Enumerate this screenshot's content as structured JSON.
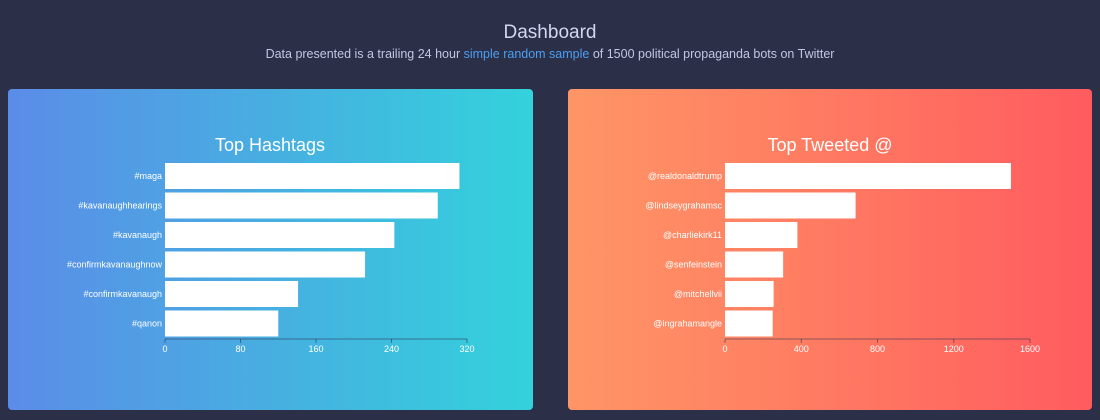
{
  "header": {
    "title": "Dashboard",
    "subtitle_before": "Data presented is a trailing 24 hour ",
    "subtitle_link": "simple random sample",
    "subtitle_after": " of 1500 political propaganda bots on Twitter"
  },
  "chart_data": [
    {
      "type": "bar",
      "orientation": "horizontal",
      "title": "Top Hashtags",
      "categories": [
        "#maga",
        "#kavanaughhearings",
        "#kavanaugh",
        "#confirmkavanaughnow",
        "#confirmkavanaugh",
        "#qanon"
      ],
      "values": [
        312,
        289,
        243,
        212,
        141,
        120
      ],
      "xlim": [
        0,
        320
      ],
      "xticks": [
        "0",
        "80",
        "160",
        "240",
        "320"
      ],
      "bar_color": "#ffffff"
    },
    {
      "type": "bar",
      "orientation": "horizontal",
      "title": "Top Tweeted @",
      "categories": [
        "@realdonaldtrump",
        "@lindseygrahamsc",
        "@charliekirk11",
        "@senfeinstein",
        "@mitchellvii",
        "@ingrahamangle"
      ],
      "values": [
        1500,
        685,
        380,
        305,
        255,
        250
      ],
      "xlim": [
        0,
        1600
      ],
      "xticks": [
        "0",
        "400",
        "800",
        "1200",
        "1600"
      ],
      "bar_color": "#ffffff"
    }
  ]
}
